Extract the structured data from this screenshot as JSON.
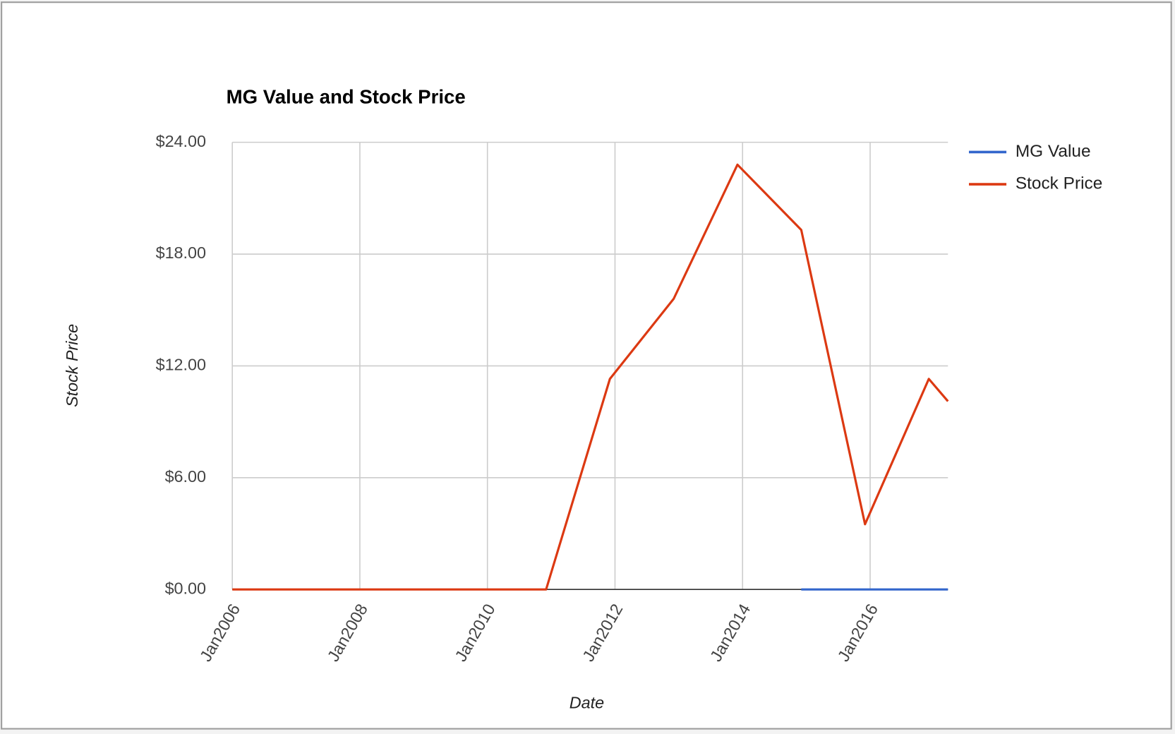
{
  "chart_data": {
    "type": "line",
    "title": "MG Value and Stock Price",
    "x_label": "Date",
    "y_label": "Stock Price",
    "x": [
      2006.0,
      2006.92,
      2007.92,
      2008.92,
      2009.92,
      2010.92,
      2011.92,
      2012.92,
      2013.92,
      2014.92,
      2015.92,
      2016.92,
      2017.22
    ],
    "series": [
      {
        "name": "MG Value",
        "color": "#3366cc",
        "values": [
          null,
          null,
          null,
          null,
          null,
          null,
          null,
          null,
          null,
          0,
          0,
          0,
          0
        ]
      },
      {
        "name": "Stock Price",
        "color": "#dc3912",
        "values": [
          0,
          0,
          0,
          0,
          0,
          0,
          11.3,
          15.6,
          22.8,
          19.3,
          3.5,
          11.3,
          10.1
        ]
      }
    ],
    "xlim": [
      2006.0,
      2017.22
    ],
    "xticks": [
      {
        "value": 2006,
        "label": "Jan2006"
      },
      {
        "value": 2008,
        "label": "Jan2008"
      },
      {
        "value": 2010,
        "label": "Jan2010"
      },
      {
        "value": 2012,
        "label": "Jan2012"
      },
      {
        "value": 2014,
        "label": "Jan2014"
      },
      {
        "value": 2016,
        "label": "Jan2016"
      }
    ],
    "ylim": [
      0,
      24
    ],
    "yticks": [
      {
        "value": 0,
        "label": "$0.00"
      },
      {
        "value": 6,
        "label": "$6.00"
      },
      {
        "value": 12,
        "label": "$12.00"
      },
      {
        "value": 18,
        "label": "$18.00"
      },
      {
        "value": 24,
        "label": "$24.00"
      }
    ],
    "grid": true,
    "legend": "right"
  }
}
